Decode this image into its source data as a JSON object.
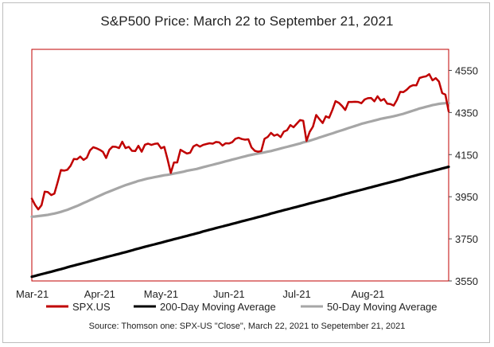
{
  "chart_data": {
    "type": "line",
    "title": "S&P500 Price: March 22 to September 21, 2021",
    "ylim": [
      3550,
      4650
    ],
    "yticks": [
      3550,
      3750,
      3950,
      4150,
      4350,
      4550
    ],
    "ytick_labels": [
      "3550",
      "3750",
      "3950",
      "4150",
      "4350",
      "4550"
    ],
    "x_count": 130,
    "xtick_labels": [
      "Mar-21",
      "Apr-21",
      "May-21",
      "Jun-21",
      "Jul-21",
      "Aug-21"
    ],
    "xtick_index": [
      0,
      21,
      40,
      61,
      82,
      104
    ],
    "series": [
      {
        "name": "SPX.US",
        "color": "#c00000",
        "values": [
          3941,
          3911,
          3890,
          3910,
          3974,
          3972,
          3958,
          3965,
          4019,
          4077,
          4074,
          4078,
          4097,
          4129,
          4128,
          4141,
          4125,
          4135,
          4170,
          4185,
          4180,
          4173,
          4163,
          4134,
          4173,
          4188,
          4187,
          4181,
          4211,
          4181,
          4187,
          4168,
          4167,
          4192,
          4164,
          4197,
          4202,
          4196,
          4201,
          4203,
          4180,
          4187,
          4128,
          4063,
          4113,
          4113,
          4173,
          4164,
          4155,
          4159,
          4189,
          4197,
          4188,
          4196,
          4200,
          4204,
          4202,
          4210,
          4208,
          4193,
          4204,
          4203,
          4209,
          4225,
          4230,
          4224,
          4221,
          4223,
          4184,
          4168,
          4164,
          4167,
          4225,
          4234,
          4253,
          4240,
          4246,
          4233,
          4259,
          4266,
          4290,
          4280,
          4297,
          4314,
          4311,
          4215,
          4258,
          4283,
          4338,
          4319,
          4300,
          4332,
          4325,
          4362,
          4404,
          4396,
          4381,
          4362,
          4400,
          4400,
          4401,
          4400,
          4394,
          4412,
          4418,
          4419,
          4403,
          4427,
          4406,
          4414,
          4392,
          4390,
          4383,
          4410,
          4448,
          4447,
          4458,
          4473,
          4480,
          4479,
          4514,
          4519,
          4522,
          4532,
          4503,
          4513,
          4497,
          4442,
          4435,
          4355
        ],
        "labels": [
          "Mar-21",
          "Apr-21",
          "May-21",
          "Jun-21",
          "Jul-21",
          "Aug-21"
        ]
      },
      {
        "name": "200-Day Moving Average",
        "color": "#000000",
        "values": [
          3570,
          3574,
          3578,
          3582,
          3586,
          3590,
          3594,
          3598,
          3602,
          3606,
          3610,
          3615,
          3619,
          3623,
          3627,
          3631,
          3635,
          3639,
          3643,
          3647,
          3651,
          3655,
          3659,
          3663,
          3667,
          3671,
          3675,
          3679,
          3683,
          3687,
          3691,
          3695,
          3700,
          3704,
          3708,
          3712,
          3716,
          3720,
          3724,
          3728,
          3732,
          3736,
          3740,
          3744,
          3748,
          3752,
          3756,
          3760,
          3764,
          3768,
          3772,
          3776,
          3780,
          3785,
          3789,
          3793,
          3797,
          3801,
          3805,
          3809,
          3813,
          3817,
          3821,
          3825,
          3829,
          3833,
          3837,
          3841,
          3845,
          3849,
          3853,
          3857,
          3861,
          3865,
          3870,
          3874,
          3878,
          3882,
          3886,
          3890,
          3894,
          3898,
          3902,
          3906,
          3910,
          3914,
          3918,
          3922,
          3926,
          3930,
          3934,
          3938,
          3942,
          3946,
          3950,
          3955,
          3959,
          3963,
          3967,
          3971,
          3975,
          3979,
          3983,
          3987,
          3991,
          3995,
          3999,
          4003,
          4007,
          4011,
          4015,
          4019,
          4023,
          4027,
          4031,
          4035,
          4040,
          4044,
          4048,
          4052,
          4056,
          4060,
          4064,
          4068,
          4072,
          4076,
          4080,
          4084,
          4088,
          4092
        ]
      },
      {
        "name": "50-Day Moving Average",
        "color": "#a6a6a6",
        "values": [
          3855,
          3856,
          3858,
          3860,
          3862,
          3864,
          3867,
          3870,
          3874,
          3878,
          3883,
          3888,
          3894,
          3900,
          3906,
          3913,
          3920,
          3927,
          3934,
          3941,
          3948,
          3955,
          3962,
          3969,
          3975,
          3981,
          3987,
          3993,
          3999,
          4005,
          4010,
          4015,
          4020,
          4025,
          4029,
          4033,
          4037,
          4040,
          4043,
          4046,
          4049,
          4052,
          4054,
          4057,
          4060,
          4063,
          4066,
          4069,
          4073,
          4076,
          4079,
          4082,
          4086,
          4090,
          4094,
          4098,
          4102,
          4106,
          4110,
          4114,
          4118,
          4122,
          4126,
          4130,
          4134,
          4138,
          4142,
          4146,
          4149,
          4152,
          4155,
          4158,
          4161,
          4164,
          4167,
          4171,
          4175,
          4179,
          4183,
          4187,
          4191,
          4195,
          4199,
          4203,
          4208,
          4212,
          4216,
          4221,
          4226,
          4231,
          4236,
          4241,
          4246,
          4251,
          4256,
          4261,
          4266,
          4271,
          4276,
          4281,
          4286,
          4291,
          4296,
          4300,
          4304,
          4308,
          4312,
          4316,
          4320,
          4323,
          4326,
          4329,
          4332,
          4336,
          4340,
          4344,
          4349,
          4354,
          4359,
          4364,
          4369,
          4373,
          4377,
          4381,
          4385,
          4388,
          4391,
          4393,
          4394,
          4395
        ]
      }
    ],
    "legend": [
      "SPX.US",
      "200-Day Moving Average",
      "50-Day Moving Average"
    ],
    "legend_position": "bottom",
    "source": "Source: Thomson one: SPX-US  \"Close\", March 22, 2021 to Sepetember 21, 2021",
    "plot_border_color": "#c00000"
  }
}
